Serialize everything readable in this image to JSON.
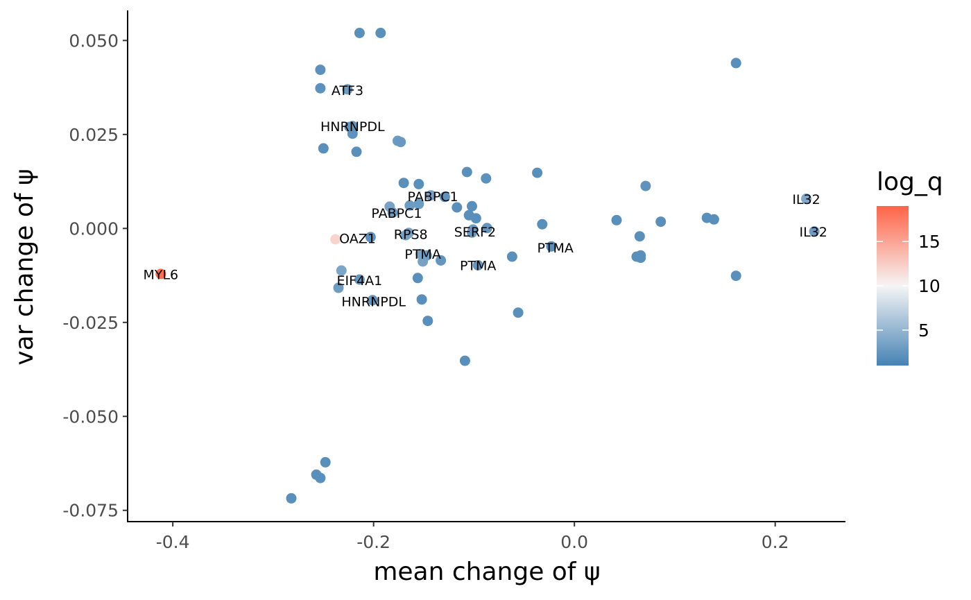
{
  "chart_data": {
    "type": "scatter",
    "xlabel": "mean change of ψ",
    "ylabel": "var change of ψ",
    "xlim": [
      -0.445,
      0.27
    ],
    "ylim": [
      -0.078,
      0.058
    ],
    "x_ticks": [
      {
        "value": -0.4,
        "label": "-0.4"
      },
      {
        "value": -0.2,
        "label": "-0.2"
      },
      {
        "value": 0.0,
        "label": "0.0"
      },
      {
        "value": 0.2,
        "label": "0.2"
      }
    ],
    "y_ticks": [
      {
        "value": 0.05,
        "label": "0.050"
      },
      {
        "value": 0.025,
        "label": "0.025"
      },
      {
        "value": 0.0,
        "label": "0.000"
      },
      {
        "value": -0.025,
        "label": "-0.025"
      },
      {
        "value": -0.05,
        "label": "-0.050"
      },
      {
        "value": -0.075,
        "label": "-0.075"
      }
    ],
    "grid": false,
    "legend": {
      "title": "log_q",
      "placement": "right",
      "range": [
        1,
        19
      ],
      "ticks": [
        {
          "value": 5,
          "label": "5"
        },
        {
          "value": 10,
          "label": "10"
        },
        {
          "value": 15,
          "label": "15"
        }
      ],
      "colors": {
        "low": "#4682b4",
        "mid": "#f5f5f5",
        "high": "#ff6347"
      },
      "midpoint": 10
    },
    "points": [
      {
        "x": -0.214,
        "y": 0.052,
        "log_q": 2
      },
      {
        "x": -0.193,
        "y": 0.052,
        "log_q": 2
      },
      {
        "x": 0.161,
        "y": 0.044,
        "log_q": 2
      },
      {
        "x": -0.253,
        "y": 0.0422,
        "log_q": 2.2
      },
      {
        "x": -0.253,
        "y": 0.0373,
        "log_q": 2.2
      },
      {
        "x": -0.226,
        "y": 0.037,
        "log_q": 3
      },
      {
        "x": -0.224,
        "y": 0.027,
        "log_q": 2.4
      },
      {
        "x": -0.221,
        "y": 0.0272,
        "log_q": 2.5
      },
      {
        "x": -0.221,
        "y": 0.0252,
        "log_q": 2.3
      },
      {
        "x": -0.176,
        "y": 0.0233,
        "log_q": 3
      },
      {
        "x": -0.173,
        "y": 0.023,
        "log_q": 2.8
      },
      {
        "x": -0.25,
        "y": 0.0213,
        "log_q": 2
      },
      {
        "x": -0.217,
        "y": 0.0204,
        "log_q": 2
      },
      {
        "x": -0.107,
        "y": 0.015,
        "log_q": 2
      },
      {
        "x": -0.037,
        "y": 0.0148,
        "log_q": 2
      },
      {
        "x": -0.088,
        "y": 0.0133,
        "log_q": 2.2
      },
      {
        "x": -0.17,
        "y": 0.0121,
        "log_q": 2
      },
      {
        "x": -0.155,
        "y": 0.0118,
        "log_q": 2
      },
      {
        "x": 0.071,
        "y": 0.0113,
        "log_q": 2.3
      },
      {
        "x": -0.143,
        "y": 0.0088,
        "log_q": 3.5
      },
      {
        "x": -0.129,
        "y": 0.0084,
        "log_q": 2.3
      },
      {
        "x": 0.231,
        "y": 0.0079,
        "log_q": 4
      },
      {
        "x": -0.184,
        "y": 0.0058,
        "log_q": 3.5
      },
      {
        "x": -0.164,
        "y": 0.0061,
        "log_q": 3
      },
      {
        "x": -0.155,
        "y": 0.0065,
        "log_q": 3
      },
      {
        "x": -0.117,
        "y": 0.0056,
        "log_q": 2
      },
      {
        "x": -0.102,
        "y": 0.0059,
        "log_q": 2
      },
      {
        "x": -0.181,
        "y": 0.0042,
        "log_q": 3
      },
      {
        "x": -0.105,
        "y": 0.0035,
        "log_q": 2
      },
      {
        "x": -0.098,
        "y": 0.0027,
        "log_q": 2
      },
      {
        "x": 0.042,
        "y": 0.0022,
        "log_q": 2
      },
      {
        "x": 0.086,
        "y": 0.0018,
        "log_q": 2
      },
      {
        "x": 0.132,
        "y": 0.0028,
        "log_q": 2
      },
      {
        "x": 0.139,
        "y": 0.0024,
        "log_q": 2
      },
      {
        "x": -0.032,
        "y": 0.0011,
        "log_q": 2
      },
      {
        "x": -0.087,
        "y": 0.0001,
        "log_q": 2.5
      },
      {
        "x": -0.101,
        "y": -0.0003,
        "log_q": 3
      },
      {
        "x": -0.102,
        "y": -0.0011,
        "log_q": 2.8
      },
      {
        "x": -0.165,
        "y": -0.0012,
        "log_q": 3.5
      },
      {
        "x": -0.168,
        "y": -0.0018,
        "log_q": 3.5
      },
      {
        "x": 0.239,
        "y": -0.0008,
        "log_q": 3
      },
      {
        "x": 0.065,
        "y": -0.0021,
        "log_q": 2
      },
      {
        "x": -0.203,
        "y": -0.0023,
        "log_q": 2.2
      },
      {
        "x": -0.238,
        "y": -0.0029,
        "log_q": 12
      },
      {
        "x": -0.023,
        "y": -0.0048,
        "log_q": 2
      },
      {
        "x": -0.153,
        "y": -0.0068,
        "log_q": 3.5
      },
      {
        "x": -0.147,
        "y": -0.0072,
        "log_q": 3
      },
      {
        "x": -0.062,
        "y": -0.0075,
        "log_q": 2
      },
      {
        "x": 0.062,
        "y": -0.0075,
        "log_q": 2
      },
      {
        "x": 0.066,
        "y": -0.0072,
        "log_q": 2
      },
      {
        "x": 0.066,
        "y": -0.0078,
        "log_q": 2
      },
      {
        "x": -0.151,
        "y": -0.0088,
        "log_q": 3.5
      },
      {
        "x": -0.133,
        "y": -0.0085,
        "log_q": 2.5
      },
      {
        "x": -0.096,
        "y": -0.0098,
        "log_q": 2.5
      },
      {
        "x": -0.412,
        "y": -0.0121,
        "log_q": 18.5
      },
      {
        "x": -0.232,
        "y": -0.0112,
        "log_q": 3.8
      },
      {
        "x": 0.161,
        "y": -0.0126,
        "log_q": 2
      },
      {
        "x": -0.156,
        "y": -0.0132,
        "log_q": 2
      },
      {
        "x": -0.214,
        "y": -0.0136,
        "log_q": 2.5
      },
      {
        "x": -0.235,
        "y": -0.0158,
        "log_q": 3
      },
      {
        "x": -0.152,
        "y": -0.0189,
        "log_q": 2
      },
      {
        "x": -0.201,
        "y": -0.0191,
        "log_q": 2.3
      },
      {
        "x": -0.056,
        "y": -0.0224,
        "log_q": 2
      },
      {
        "x": -0.146,
        "y": -0.0246,
        "log_q": 2
      },
      {
        "x": -0.109,
        "y": -0.0352,
        "log_q": 2
      },
      {
        "x": -0.248,
        "y": -0.0622,
        "log_q": 2
      },
      {
        "x": -0.257,
        "y": -0.0655,
        "log_q": 2
      },
      {
        "x": -0.253,
        "y": -0.0664,
        "log_q": 2
      },
      {
        "x": -0.282,
        "y": -0.0718,
        "log_q": 2
      }
    ],
    "annotations": [
      {
        "text": "ATF3",
        "x": -0.226,
        "y": 0.0368
      },
      {
        "text": "HNRNPDL",
        "x": -0.221,
        "y": 0.0272
      },
      {
        "text": "PABPC1",
        "x": -0.141,
        "y": 0.0085
      },
      {
        "text": "IL32",
        "x": 0.231,
        "y": 0.0078
      },
      {
        "text": "PABPC1",
        "x": -0.177,
        "y": 0.0041
      },
      {
        "text": "RPS8",
        "x": -0.163,
        "y": -0.0015
      },
      {
        "text": "SERF2",
        "x": -0.099,
        "y": -0.0009
      },
      {
        "text": "IL32",
        "x": 0.238,
        "y": -0.0009
      },
      {
        "text": "OAZ1",
        "x": -0.216,
        "y": -0.0026
      },
      {
        "text": "PTMA",
        "x": -0.151,
        "y": -0.0068
      },
      {
        "text": "PTMA",
        "x": -0.019,
        "y": -0.0051
      },
      {
        "text": "PTMA",
        "x": -0.096,
        "y": -0.0098
      },
      {
        "text": "MYL6",
        "x": -0.412,
        "y": -0.0122
      },
      {
        "text": "EIF4A1",
        "x": -0.214,
        "y": -0.0138
      },
      {
        "text": "HNRNPDL",
        "x": -0.2,
        "y": -0.0194
      }
    ]
  }
}
